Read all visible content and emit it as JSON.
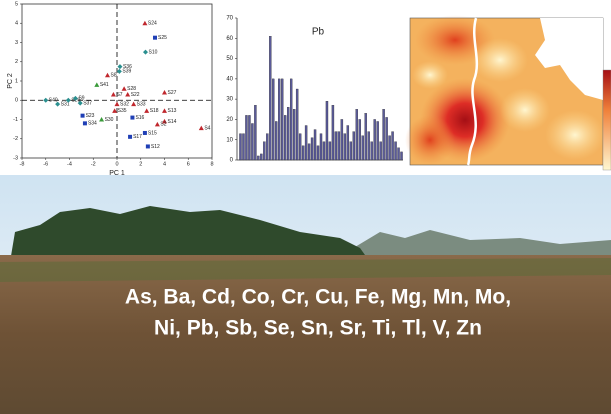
{
  "chart_data": [
    {
      "type": "scatter",
      "xlabel": "PC 1",
      "ylabel": "PC 2",
      "xlim": [
        -8,
        8
      ],
      "ylim": [
        -3,
        5
      ],
      "xticks": [
        -8,
        -6,
        -4,
        -2,
        0,
        2,
        4,
        6,
        8
      ],
      "yticks": [
        -3,
        -2,
        -1,
        0,
        1,
        2,
        3,
        4,
        5
      ],
      "series": [
        {
          "color": "#c0272d",
          "marker": "triangle",
          "labels": [
            "S24",
            "S8",
            "S28",
            "S27",
            "S22",
            "S7",
            "S33",
            "S18",
            "S13",
            "S14",
            "S2",
            "S4",
            "S35",
            "S32"
          ],
          "x": [
            2.35,
            -0.8,
            0.6,
            4.0,
            0.9,
            -0.3,
            1.4,
            2.5,
            4.0,
            4.0,
            3.4,
            7.1,
            -0.2,
            0
          ],
          "y": [
            4.0,
            1.3,
            0.6,
            0.4,
            0.3,
            0.3,
            -0.2,
            -0.55,
            -0.55,
            -1.1,
            -1.25,
            -1.45,
            -0.55,
            -0.2
          ]
        },
        {
          "color": "#1f3fb5",
          "marker": "square",
          "labels": [
            "S25",
            "S23",
            "S34",
            "S16",
            "S15",
            "S17",
            "S12"
          ],
          "x": [
            3.2,
            -2.9,
            -2.7,
            1.3,
            2.35,
            1.1,
            2.6
          ],
          "y": [
            3.25,
            -0.8,
            -1.2,
            -0.9,
            -1.7,
            -1.9,
            -2.4
          ]
        },
        {
          "color": "#2a8f8f",
          "marker": "diamond",
          "labels": [
            "S10",
            "S36",
            "S39",
            "S40",
            "S31",
            "S26",
            "S37",
            "S9"
          ],
          "x": [
            2.4,
            0.25,
            0.2,
            -6.0,
            -5.0,
            -4.1,
            -3.1,
            -3.5
          ],
          "y": [
            2.5,
            1.75,
            1.5,
            0,
            -0.2,
            0,
            -0.15,
            0.1
          ]
        },
        {
          "color": "#3a9a3a",
          "marker": "triangle",
          "labels": [
            "S41",
            "S30"
          ],
          "x": [
            -1.7,
            -1.3
          ],
          "y": [
            0.8,
            -1.0
          ]
        }
      ]
    },
    {
      "type": "bar",
      "title": "Pb",
      "color": "#5b5b99",
      "ylim": [
        0,
        70
      ],
      "yticks": [
        0,
        10,
        20,
        30,
        40,
        50,
        60,
        70
      ],
      "values": [
        13,
        13,
        22,
        22,
        18,
        27,
        2,
        3,
        9,
        13,
        61,
        40,
        19,
        40,
        40,
        22,
        26,
        40,
        25,
        35,
        13,
        7,
        17,
        8,
        11,
        15,
        7,
        13,
        9,
        29,
        9,
        27,
        14,
        14,
        20,
        13,
        17,
        9,
        14,
        25,
        20,
        12,
        23,
        14,
        9,
        20,
        19,
        9,
        25,
        21,
        12,
        14,
        9,
        6,
        4
      ]
    }
  ],
  "caption": {
    "lines": [
      "As, Ba, Cd, Co, Cr, Cu, Fe, Mg, Mn, Mo,",
      "Ni, Pb, Sb, Se, Sn, Sr, Ti, Tl, V, Zn"
    ]
  }
}
